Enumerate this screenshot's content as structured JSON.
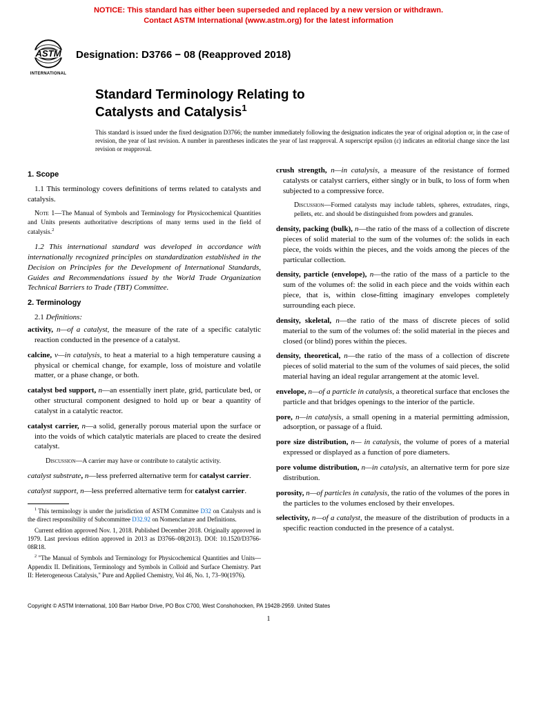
{
  "notice": {
    "line1": "NOTICE: This standard has either been superseded and replaced by a new version or withdrawn.",
    "line2": "Contact ASTM International (www.astm.org) for the latest information"
  },
  "designation": "Designation: D3766 − 08 (Reapproved 2018)",
  "title_line1": "Standard Terminology Relating to",
  "title_line2": "Catalysts and Catalysis",
  "title_sup": "1",
  "issue_note": "This standard is issued under the fixed designation D3766; the number immediately following the designation indicates the year of original adoption or, in the case of revision, the year of last revision. A number in parentheses indicates the year of last reapproval. A superscript epsilon (ε) indicates an editorial change since the last revision or reapproval.",
  "s1_head": "1. Scope",
  "s1_1": "1.1 This terminology covers definitions of terms related to catalysts and catalysis.",
  "s1_note_label": "Note 1—",
  "s1_note_body": "The Manual of Symbols and Terminology for Physicochemical Quantities and Units presents authoritative descriptions of many terms used in the field of catalysis.",
  "s1_note_sup": "2",
  "s1_2": "1.2 This international standard was developed in accordance with internationally recognized principles on standardization established in the Decision on Principles for the Development of International Standards, Guides and Recommendations issued by the World Trade Organization Technical Barriers to Trade (TBT) Committee.",
  "s2_head": "2. Terminology",
  "s2_1_label": "2.1 ",
  "s2_1_name": "Definitions:",
  "defs_left": [
    {
      "term": "activity,",
      "pos": " n—of a catalyst,",
      "body": " the measure of the rate of a specific catalytic reaction conducted in the presence of a catalyst."
    },
    {
      "term": "calcine,",
      "pos": " v—in catalysis",
      "body": ", to heat a material to a high temperature causing a physical or chemical change, for example, loss of moisture and volatile matter, or a phase change, or both."
    },
    {
      "term": "catalyst bed support,",
      "pos": " n",
      "body": "—an essentially inert plate, grid, particulate bed, or other structural component designed to hold up or bear a quantity of catalyst in a catalytic reactor."
    },
    {
      "term": "catalyst carrier,",
      "pos": " n",
      "body": "—a solid, generally porous material upon the surface or into the voids of which catalytic materials are placed to create the desired catalyst."
    }
  ],
  "disc_carrier": "A carrier may have or contribute to catalytic activity.",
  "def_substrate_term": "catalyst substrate",
  "def_substrate_body": "—less preferred alternative term for ",
  "def_substrate_ref": "catalyst carrier",
  "def_support_term": "catalyst support",
  "def_support_body": "—less preferred alternative term for ",
  "def_support_ref": "catalyst carrier",
  "defs_right": [
    {
      "term": "crush strength,",
      "pos": " n—in catalysis",
      "body": ", a measure of the resistance of formed catalysts or catalyst carriers, either singly or in bulk, to loss of form when subjected to a compressive force."
    }
  ],
  "disc_crush": "Formed catalysts may include tablets, spheres, extrudates, rings, pellets, etc. and should be distinguished from powders and granules.",
  "defs_right2": [
    {
      "term": "density, packing (bulk),",
      "pos": " n",
      "body": "—the ratio of the mass of a collection of discrete pieces of solid material to the sum of the volumes of: the solids in each piece, the voids within the pieces, and the voids among the pieces of the particular collection."
    },
    {
      "term": "density, particle (envelope),",
      "pos": " n",
      "body": "—the ratio of the mass of a particle to the sum of the volumes of: the solid in each piece and the voids within each piece, that is, within close-fitting imaginary envelopes completely surrounding each piece."
    },
    {
      "term": "density, skeletal,",
      "pos": " n",
      "body": "—the ratio of the mass of discrete pieces of solid material to the sum of the volumes of: the solid material in the pieces and closed (or blind) pores within the pieces."
    },
    {
      "term": "density, theoretical,",
      "pos": " n",
      "body": "—the ratio of the mass of a collection of discrete pieces of solid material to the sum of the volumes of said pieces, the solid material having an ideal regular arrangement at the atomic level."
    },
    {
      "term": "envelope,",
      "pos": " n—of a particle in catalysis",
      "body": ", a theoretical surface that encloses the particle and that bridges openings to the interior of the particle."
    },
    {
      "term": "pore,",
      "pos": " n—in catalysis",
      "body": ", a small opening in a material permitting admission, adsorption, or passage of a fluid."
    },
    {
      "term": "pore size distribution,",
      "pos": " n— in catalysis",
      "body": ", the volume of pores of a material expressed or displayed as a function of pore diameters."
    },
    {
      "term": "pore volume distribution,",
      "pos": " n—in catalysis",
      "body": ", an alternative term for pore size distribution."
    },
    {
      "term": "porosity,",
      "pos": " n—of particles in catalysis",
      "body": ", the ratio of the volumes of the pores in the particles to the volumes enclosed by their envelopes."
    },
    {
      "term": "selectivity,",
      "pos": " n—of a catalyst",
      "body": ", the measure of the distribution of products in a specific reaction conducted in the presence of a catalyst."
    }
  ],
  "fn1_a": "This terminology is under the jurisdiction of ASTM Committee ",
  "fn1_link1": "D32",
  "fn1_b": " on Catalysts and is the direct responsibility of Subcommittee ",
  "fn1_link2": "D32.92",
  "fn1_c": " on Nomenclature and Definitions.",
  "fn1_d": "Current edition approved Nov. 1, 2018. Published December 2018. Originally approved in 1979. Last previous edition approved in 2013 as D3766–08(2013). DOI: 10.1520/D3766-08R18.",
  "fn2": "\"The Manual of Symbols and Terminology for Physicochemical Quantities and Units—Appendix II. Definitions, Terminology and Symbols in Colloid and Surface Chemistry. Part II: Heterogeneous Catalysis,\" Pure and Applied Chemistry, Vol 46, No. 1, 73–90(1976).",
  "copyright": "Copyright © ASTM International, 100 Barr Harbor Drive, PO Box C700, West Conshohocken, PA 19428-2959. United States",
  "page_num": "1",
  "disc_label": "Discussion—",
  "logo_text": "INTERNATIONAL",
  "colors": {
    "notice": "#d00",
    "link": "#0066cc",
    "text": "#000000",
    "bg": "#ffffff"
  }
}
